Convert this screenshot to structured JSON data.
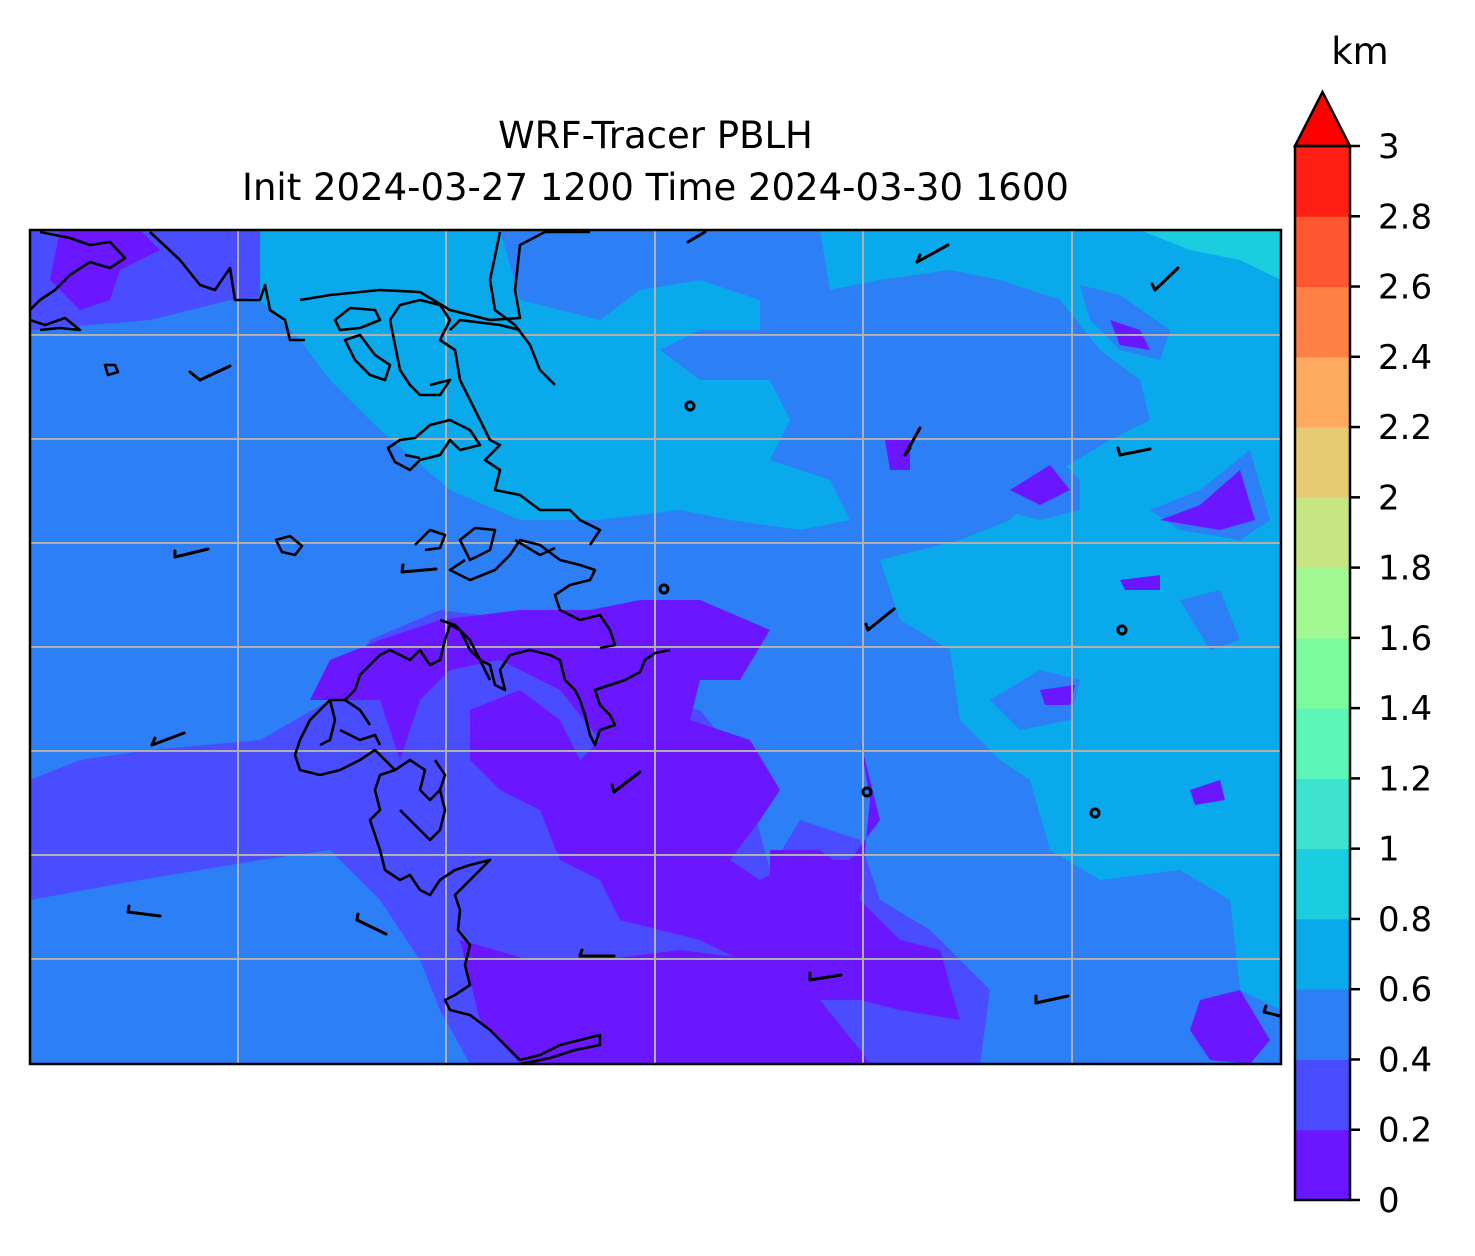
{
  "title": {
    "line1": "WRF-Tracer PBLH",
    "line2": "Init 2024-03-27 1200 Time 2024-03-30 1600"
  },
  "colorbar": {
    "unit": "km",
    "levels": [
      0,
      0.2,
      0.4,
      0.6,
      0.8,
      1,
      1.2,
      1.4,
      1.6,
      1.8,
      2,
      2.2,
      2.4,
      2.6,
      2.8,
      3
    ],
    "tick_labels": [
      "0",
      "0.2",
      "0.4",
      "0.6",
      "0.8",
      "1",
      "1.2",
      "1.4",
      "1.6",
      "1.8",
      "2",
      "2.2",
      "2.4",
      "2.6",
      "2.8",
      "3"
    ],
    "colors": [
      "#6a17ff",
      "#4a4cff",
      "#2c7ff5",
      "#09a9ec",
      "#1ccde0",
      "#3de3cf",
      "#5cf6b8",
      "#7cfb9c",
      "#a2f892",
      "#c8e583",
      "#e6cb73",
      "#fda95e",
      "#ff8046",
      "#ff5730",
      "#ff1f14"
    ],
    "extend_color": "#ff0000",
    "extend": "max"
  },
  "map": {
    "field": "PBLH",
    "background_color": "#4a4cff",
    "gridline_color": "#b0b0b0",
    "coastline_color": "#000000"
  }
}
